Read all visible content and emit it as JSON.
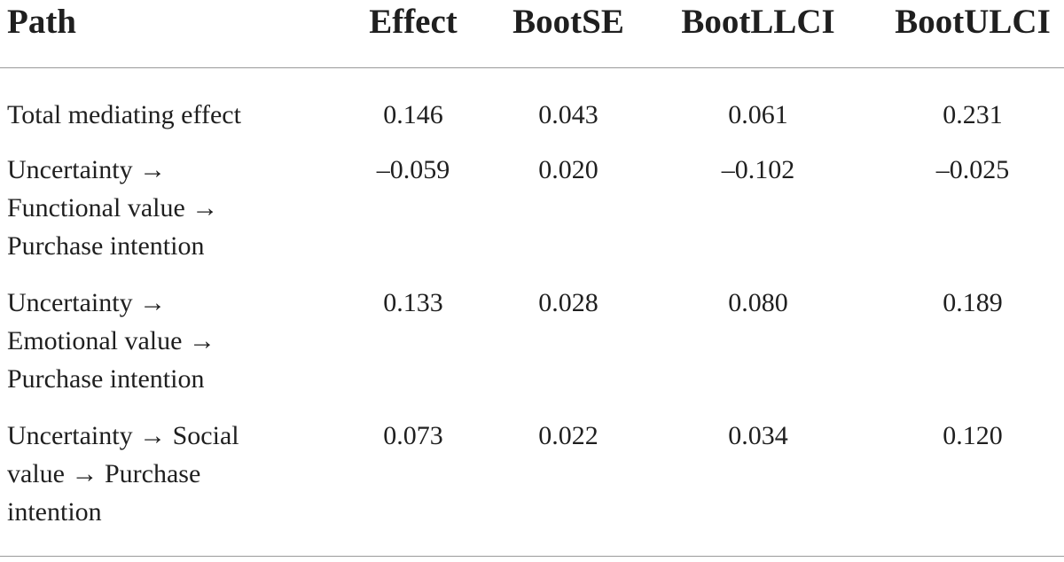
{
  "table": {
    "headers": [
      "Path",
      "Effect",
      "BootSE",
      "BootLLCI",
      "BootULCI"
    ],
    "rows": [
      {
        "path_lines": [
          "Total mediating effect"
        ],
        "effect": "0.146",
        "boot_se": "0.043",
        "boot_llci": "0.061",
        "boot_ulci": "0.231"
      },
      {
        "path_lines": [
          "Uncertainty →",
          "Functional value →",
          "Purchase intention"
        ],
        "effect": "–0.059",
        "boot_se": "0.020",
        "boot_llci": "–0.102",
        "boot_ulci": "–0.025"
      },
      {
        "path_lines": [
          "Uncertainty →",
          "Emotional value →",
          "Purchase intention"
        ],
        "effect": "0.133",
        "boot_se": "0.028",
        "boot_llci": "0.080",
        "boot_ulci": "0.189"
      },
      {
        "path_lines": [
          "Uncertainty → Social",
          "value → Purchase",
          "intention"
        ],
        "effect": "0.073",
        "boot_se": "0.022",
        "boot_llci": "0.034",
        "boot_ulci": "0.120"
      }
    ]
  }
}
